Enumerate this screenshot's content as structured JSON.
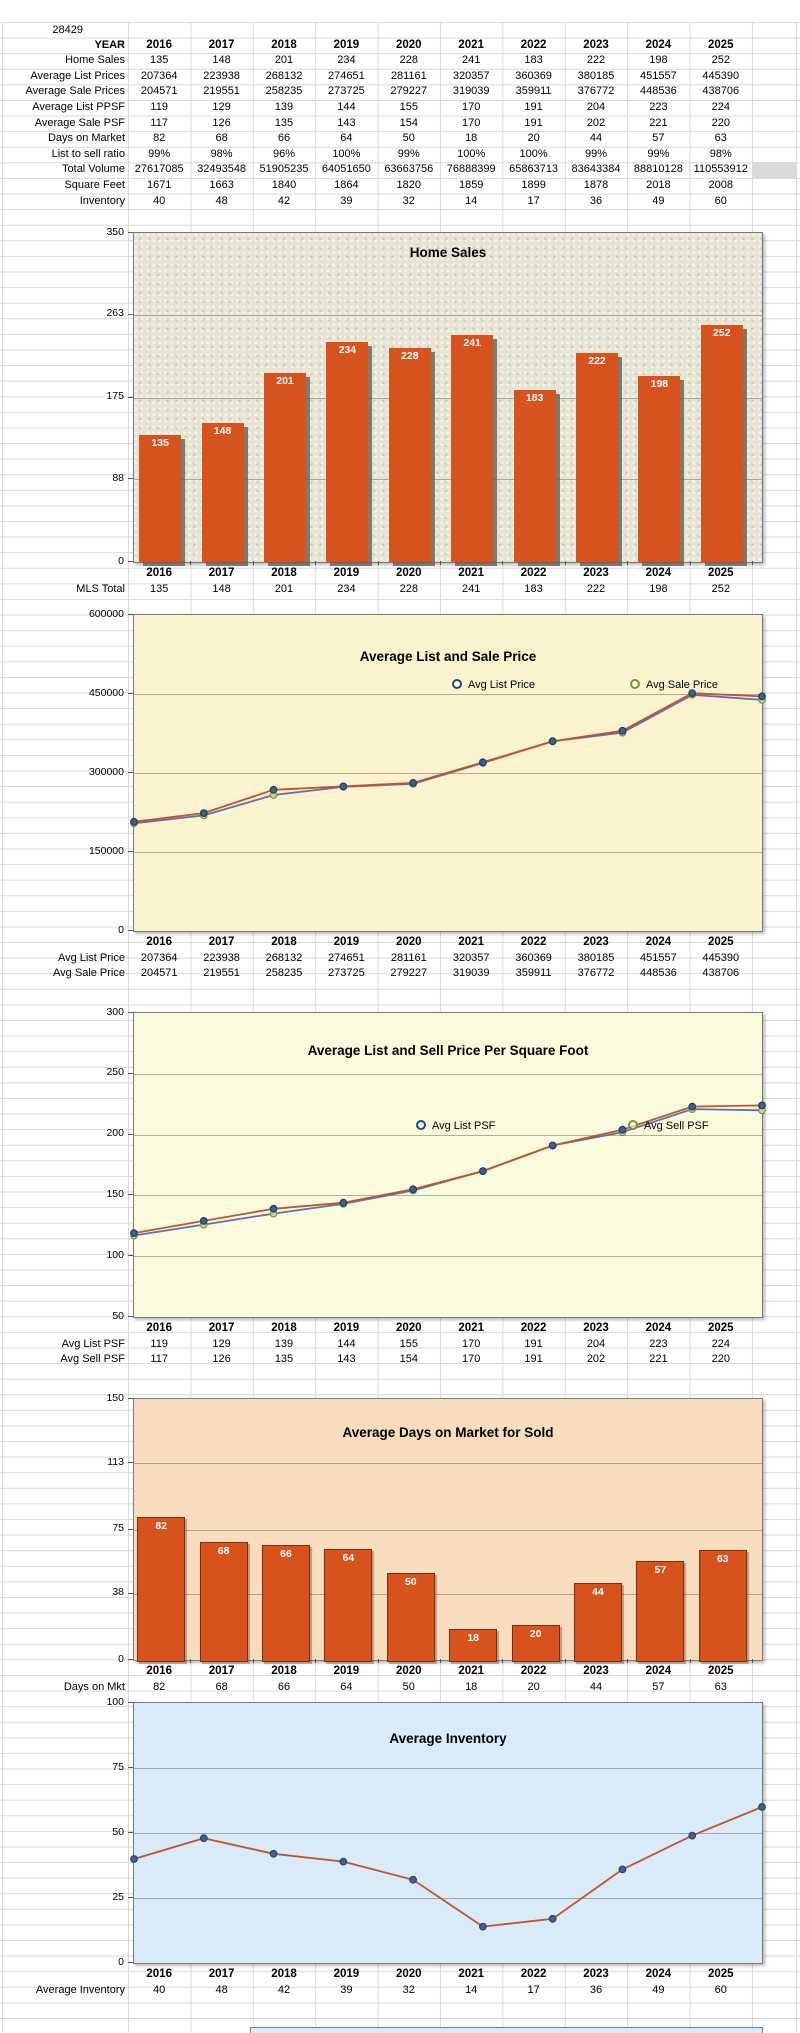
{
  "sheet": {
    "zip": "28429"
  },
  "years": [
    "2016",
    "2017",
    "2018",
    "2019",
    "2020",
    "2021",
    "2022",
    "2023",
    "2024",
    "2025"
  ],
  "table": {
    "header_label": "YEAR",
    "rows": [
      {
        "label": "Home Sales",
        "values": [
          "135",
          "148",
          "201",
          "234",
          "228",
          "241",
          "183",
          "222",
          "198",
          "252"
        ]
      },
      {
        "label": "Average List Prices",
        "values": [
          "207364",
          "223938",
          "268132",
          "274651",
          "281161",
          "320357",
          "360369",
          "380185",
          "451557",
          "445390"
        ]
      },
      {
        "label": "Average Sale Prices",
        "values": [
          "204571",
          "219551",
          "258235",
          "273725",
          "279227",
          "319039",
          "359911",
          "376772",
          "448536",
          "438706"
        ]
      },
      {
        "label": "Average List PPSF",
        "values": [
          "119",
          "129",
          "139",
          "144",
          "155",
          "170",
          "191",
          "204",
          "223",
          "224"
        ]
      },
      {
        "label": "Average Sale PSF",
        "values": [
          "117",
          "126",
          "135",
          "143",
          "154",
          "170",
          "191",
          "202",
          "221",
          "220"
        ]
      },
      {
        "label": "Days on Market",
        "values": [
          "82",
          "68",
          "66",
          "64",
          "50",
          "18",
          "20",
          "44",
          "57",
          "63"
        ]
      },
      {
        "label": "List to sell ratio",
        "values": [
          "99%",
          "98%",
          "96%",
          "100%",
          "99%",
          "100%",
          "100%",
          "99%",
          "99%",
          "98%"
        ]
      },
      {
        "label": "Total Volume",
        "values": [
          "27617085",
          "32493548",
          "51905235",
          "64051650",
          "63663756",
          "76888399",
          "65863713",
          "83643384",
          "88810128",
          "110553912"
        ]
      },
      {
        "label": "Square Feet",
        "values": [
          "1671",
          "1663",
          "1840",
          "1864",
          "1820",
          "1859",
          "1899",
          "1878",
          "2018",
          "2008"
        ]
      },
      {
        "label": "Inventory",
        "values": [
          "40",
          "48",
          "42",
          "39",
          "32",
          "14",
          "17",
          "36",
          "49",
          "60"
        ]
      }
    ]
  },
  "chart_data": [
    {
      "type": "bar",
      "title": "Home Sales",
      "categories": [
        "2016",
        "2017",
        "2018",
        "2019",
        "2020",
        "2021",
        "2022",
        "2023",
        "2024",
        "2025"
      ],
      "values": [
        135,
        148,
        201,
        234,
        228,
        241,
        183,
        222,
        198,
        252
      ],
      "ylim": [
        0,
        350
      ],
      "yticks": [
        350,
        263,
        175,
        88,
        0
      ],
      "bar_color": "#D8521E",
      "bg": "#E8E4D4",
      "grid": true,
      "legend_position": "none",
      "below_rows": [
        {
          "label": "MLS Total",
          "values": [
            "135",
            "148",
            "201",
            "234",
            "228",
            "241",
            "183",
            "222",
            "198",
            "252"
          ]
        }
      ]
    },
    {
      "type": "line",
      "title": "Average List and Sale Price",
      "categories": [
        "2016",
        "2017",
        "2018",
        "2019",
        "2020",
        "2021",
        "2022",
        "2023",
        "2024",
        "2025"
      ],
      "ylim": [
        0,
        600000
      ],
      "yticks": [
        600000,
        450000,
        300000,
        150000,
        0
      ],
      "bg": "#FBF3CD",
      "grid": true,
      "legend_position": "inside-top",
      "legend": [
        "Avg List Price",
        "Avg Sale Price"
      ],
      "legend_marker_colors": [
        "#1F497D",
        "#77933C"
      ],
      "series": [
        {
          "name": "Avg List Price",
          "line_color": "#C2532C",
          "marker_fill": "#3F5F91",
          "marker_stroke": "#1F3B63",
          "values": [
            207364,
            223938,
            268132,
            274651,
            281161,
            320357,
            360369,
            380185,
            451557,
            445390
          ]
        },
        {
          "name": "Avg Sale Price",
          "line_color": "#5F6FB4",
          "marker_fill": "#C6D59B",
          "marker_stroke": "#76923C",
          "values": [
            204571,
            219551,
            258235,
            273725,
            279227,
            319039,
            359911,
            376772,
            448536,
            438706
          ]
        }
      ],
      "below_rows": [
        {
          "label": "Avg List Price",
          "values": [
            "207364",
            "223938",
            "268132",
            "274651",
            "281161",
            "320357",
            "360369",
            "380185",
            "451557",
            "445390"
          ]
        },
        {
          "label": "Avg Sale Price",
          "values": [
            "204571",
            "219551",
            "258235",
            "273725",
            "279227",
            "319039",
            "359911",
            "376772",
            "448536",
            "438706"
          ]
        }
      ]
    },
    {
      "type": "line",
      "title": "Average List and Sell Price Per Square Foot",
      "categories": [
        "2016",
        "2017",
        "2018",
        "2019",
        "2020",
        "2021",
        "2022",
        "2023",
        "2024",
        "2025"
      ],
      "ylim": [
        50,
        300
      ],
      "yticks": [
        300,
        250,
        200,
        150,
        100,
        50
      ],
      "bg": "#FAFBDC",
      "grid": true,
      "legend_position": "inside-top",
      "legend": [
        "Avg List PSF",
        "Avg Sell PSF"
      ],
      "legend_marker_colors": [
        "#1F497D",
        "#77933C"
      ],
      "series": [
        {
          "name": "Avg List PSF",
          "line_color": "#C2532C",
          "marker_fill": "#3F5F91",
          "marker_stroke": "#1F3B63",
          "values": [
            119,
            129,
            139,
            144,
            155,
            170,
            191,
            204,
            223,
            224
          ]
        },
        {
          "name": "Avg Sell PSF",
          "line_color": "#5F6FB4",
          "marker_fill": "#C6D59B",
          "marker_stroke": "#76923C",
          "values": [
            117,
            126,
            135,
            143,
            154,
            170,
            191,
            202,
            221,
            220
          ]
        }
      ],
      "below_rows": [
        {
          "label": "Avg List PSF",
          "values": [
            "119",
            "129",
            "139",
            "144",
            "155",
            "170",
            "191",
            "204",
            "223",
            "224"
          ]
        },
        {
          "label": "Avg Sell PSF",
          "values": [
            "117",
            "126",
            "135",
            "143",
            "154",
            "170",
            "191",
            "202",
            "221",
            "220"
          ]
        }
      ]
    },
    {
      "type": "bar",
      "title": "Average Days on Market for Sold",
      "categories": [
        "2016",
        "2017",
        "2018",
        "2019",
        "2020",
        "2021",
        "2022",
        "2023",
        "2024",
        "2025"
      ],
      "values": [
        82,
        68,
        66,
        64,
        50,
        18,
        20,
        44,
        57,
        63
      ],
      "ylim": [
        0,
        150
      ],
      "yticks": [
        150,
        113,
        75,
        38,
        0
      ],
      "bar_color": "#D8521E",
      "bar_outline": "#7B2F10",
      "bg": "#F7DDBD",
      "grid": true,
      "legend_position": "none",
      "below_rows": [
        {
          "label": "Days on Mkt",
          "values": [
            "82",
            "68",
            "66",
            "64",
            "50",
            "18",
            "20",
            "44",
            "57",
            "63"
          ]
        }
      ]
    },
    {
      "type": "line",
      "title": "Average Inventory",
      "categories": [
        "2016",
        "2017",
        "2018",
        "2019",
        "2020",
        "2021",
        "2022",
        "2023",
        "2024",
        "2025"
      ],
      "ylim": [
        0,
        100
      ],
      "yticks": [
        100,
        75,
        50,
        25,
        0
      ],
      "bg": "#D9EAF8",
      "grid": true,
      "legend_position": "none",
      "series": [
        {
          "name": "Average Inventory",
          "line_color": "#C2532C",
          "marker_fill": "#41618E",
          "marker_stroke": "#24456E",
          "values": [
            40,
            48,
            42,
            39,
            32,
            14,
            17,
            36,
            49,
            60
          ]
        }
      ],
      "below_rows": [
        {
          "label": "Average Inventory",
          "values": [
            "40",
            "48",
            "42",
            "39",
            "32",
            "14",
            "17",
            "36",
            "49",
            "60"
          ]
        }
      ]
    }
  ]
}
